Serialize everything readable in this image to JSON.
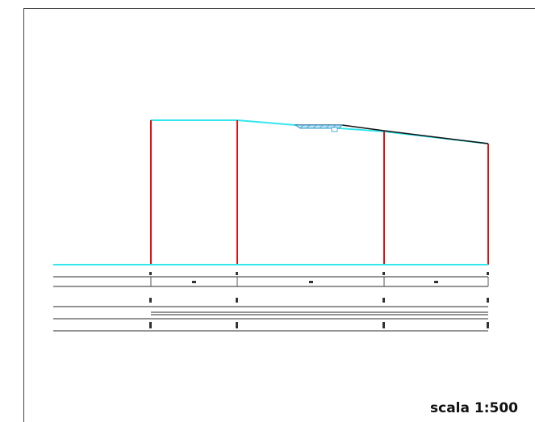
{
  "drawing": {
    "scale_label": "scala 1:500",
    "colors": {
      "terrain": "#33e6ee",
      "section_line": "#e01010",
      "guide_line": "#555555",
      "profile_line": "#111111",
      "hatch": "#3399cc"
    },
    "sections": [
      {
        "id": "1"
      },
      {
        "id": "2"
      },
      {
        "id": "3"
      },
      {
        "id": "4"
      }
    ]
  }
}
